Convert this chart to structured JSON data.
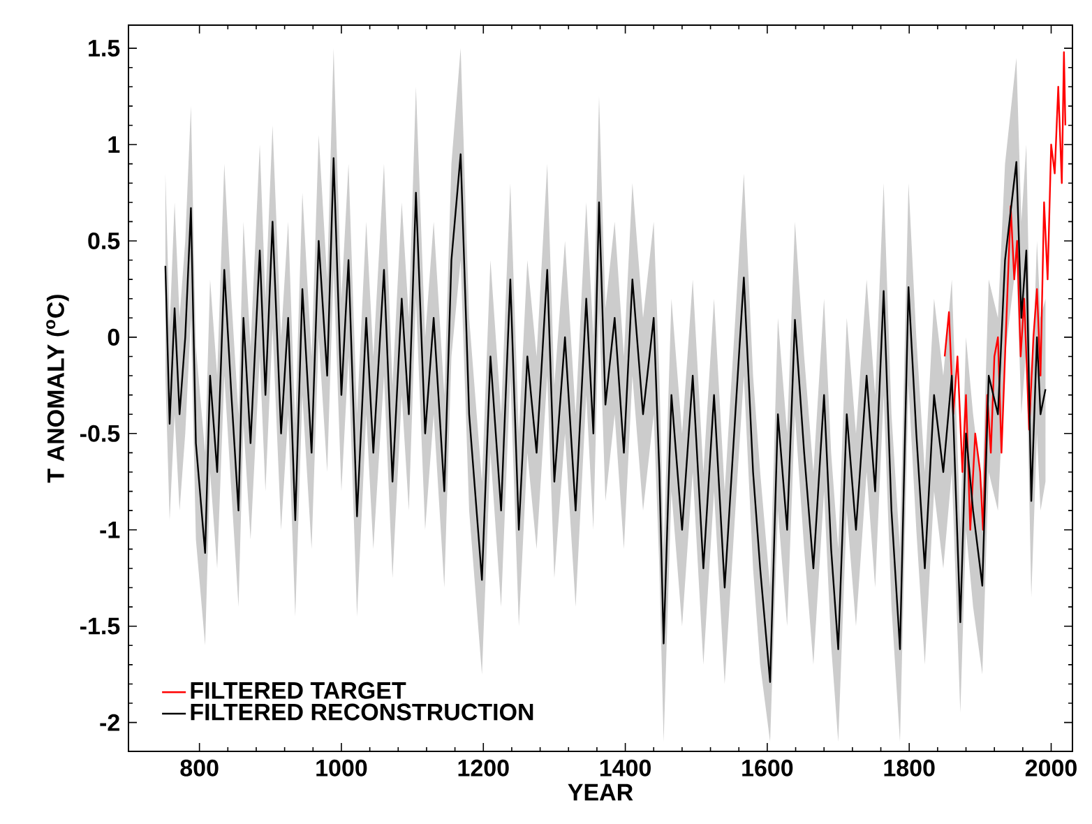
{
  "chart_data": {
    "type": "line",
    "xlabel": "YEAR",
    "ylabel": "T ANOMALY ($^{o}$C)",
    "xlim": [
      700,
      2030
    ],
    "ylim": [
      -2.15,
      1.62
    ],
    "xticks": [
      800,
      1000,
      1200,
      1400,
      1600,
      1800,
      2000
    ],
    "yticks": [
      -2,
      -1.5,
      -1,
      -0.5,
      0,
      0.5,
      1,
      1.5
    ],
    "legend": "bottom left",
    "line_style": "solid",
    "series": [
      {
        "name": "FILTERED TARGET",
        "color": "#ff0000",
        "x": [
          1850,
          1856,
          1862,
          1868,
          1875,
          1880,
          1886,
          1893,
          1900,
          1904,
          1910,
          1915,
          1920,
          1925,
          1930,
          1937,
          1943,
          1948,
          1952,
          1957,
          1962,
          1969,
          1975,
          1980,
          1985,
          1990,
          1995,
          2000,
          2005,
          2010,
          2015,
          2018,
          2020
        ],
        "values": [
          -0.1,
          0.13,
          -0.4,
          -0.1,
          -0.7,
          -0.3,
          -1.0,
          -0.5,
          -0.7,
          -1.0,
          -0.3,
          -0.6,
          -0.1,
          0.0,
          -0.6,
          0.1,
          0.68,
          0.3,
          0.5,
          -0.1,
          0.2,
          -0.48,
          0.0,
          0.25,
          -0.2,
          0.7,
          0.3,
          1.0,
          0.85,
          1.3,
          0.8,
          1.48,
          1.1
        ]
      },
      {
        "name": "FILTERED RECONSTRUCTION",
        "color": "#000000",
        "x": [
          752,
          758,
          765,
          772,
          780,
          788,
          795,
          808,
          815,
          825,
          835,
          845,
          855,
          862,
          872,
          885,
          893,
          903,
          915,
          925,
          935,
          945,
          958,
          968,
          980,
          989,
          1000,
          1010,
          1022,
          1035,
          1045,
          1060,
          1072,
          1085,
          1095,
          1105,
          1118,
          1130,
          1145,
          1155,
          1168,
          1180,
          1198,
          1210,
          1225,
          1238,
          1250,
          1262,
          1275,
          1290,
          1300,
          1315,
          1330,
          1345,
          1355,
          1363,
          1372,
          1385,
          1398,
          1410,
          1425,
          1440,
          1448,
          1454,
          1465,
          1480,
          1495,
          1510,
          1525,
          1540,
          1555,
          1567,
          1580,
          1590,
          1604,
          1615,
          1628,
          1639,
          1652,
          1665,
          1680,
          1690,
          1700,
          1712,
          1725,
          1740,
          1752,
          1764,
          1775,
          1787,
          1799,
          1810,
          1822,
          1835,
          1848,
          1860,
          1872,
          1880,
          1890,
          1903,
          1912,
          1925,
          1935,
          1951,
          1958,
          1965,
          1972,
          1980,
          1985,
          1992
        ],
        "values": [
          0.37,
          -0.45,
          0.15,
          -0.4,
          0.0,
          0.67,
          -0.55,
          -1.12,
          -0.2,
          -0.7,
          0.35,
          -0.3,
          -0.9,
          0.1,
          -0.55,
          0.45,
          -0.3,
          0.6,
          -0.5,
          0.1,
          -0.95,
          0.25,
          -0.6,
          0.5,
          -0.2,
          0.93,
          -0.3,
          0.4,
          -0.93,
          0.1,
          -0.6,
          0.35,
          -0.75,
          0.2,
          -0.4,
          0.75,
          -0.5,
          0.1,
          -0.8,
          0.4,
          0.95,
          -0.4,
          -1.26,
          -0.1,
          -0.9,
          0.3,
          -1.0,
          -0.1,
          -0.6,
          0.35,
          -0.75,
          0.0,
          -0.9,
          0.2,
          -0.5,
          0.7,
          -0.35,
          0.1,
          -0.6,
          0.3,
          -0.4,
          0.1,
          -0.7,
          -1.59,
          -0.3,
          -1.0,
          -0.2,
          -1.2,
          -0.3,
          -1.3,
          -0.4,
          0.31,
          -0.7,
          -1.2,
          -1.79,
          -0.4,
          -1.0,
          0.09,
          -0.6,
          -1.2,
          -0.3,
          -1.1,
          -1.62,
          -0.4,
          -1.0,
          -0.2,
          -0.8,
          0.24,
          -0.9,
          -1.62,
          0.26,
          -0.5,
          -1.2,
          -0.3,
          -0.7,
          -0.2,
          -1.48,
          -0.5,
          -0.9,
          -1.29,
          -0.2,
          -0.4,
          0.4,
          0.91,
          0.1,
          0.45,
          -0.85,
          0.0,
          -0.4,
          -0.27
        ],
        "lower": [
          -0.2,
          -0.95,
          -0.4,
          -0.9,
          -0.5,
          0.1,
          -1.05,
          -1.6,
          -0.7,
          -1.2,
          -0.2,
          -0.8,
          -1.4,
          -0.45,
          -1.05,
          -0.1,
          -0.8,
          0.05,
          -1.0,
          -0.4,
          -1.45,
          -0.3,
          -1.1,
          0.0,
          -0.7,
          0.35,
          -0.8,
          -0.1,
          -1.45,
          -0.4,
          -1.1,
          -0.2,
          -1.25,
          -0.3,
          -0.9,
          0.2,
          -1.0,
          -0.4,
          -1.3,
          -0.1,
          0.4,
          -0.9,
          -1.75,
          -0.6,
          -1.4,
          -0.2,
          -1.5,
          -0.6,
          -1.1,
          -0.2,
          -1.25,
          -0.5,
          -1.4,
          -0.3,
          -1.0,
          0.15,
          -0.85,
          -0.4,
          -1.1,
          -0.2,
          -0.9,
          -0.4,
          -1.2,
          -2.1,
          -0.8,
          -1.5,
          -0.7,
          -1.7,
          -0.8,
          -1.8,
          -0.9,
          -0.2,
          -1.2,
          -1.7,
          -2.1,
          -0.9,
          -1.5,
          -0.4,
          -1.1,
          -1.7,
          -0.8,
          -1.6,
          -2.1,
          -0.9,
          -1.5,
          -0.7,
          -1.3,
          -0.3,
          -1.4,
          -2.1,
          -0.25,
          -1.0,
          -1.7,
          -0.8,
          -1.2,
          -0.7,
          -1.95,
          -1.0,
          -1.4,
          -1.75,
          -0.7,
          -0.9,
          -0.1,
          0.4,
          -0.4,
          -0.05,
          -1.35,
          -0.5,
          -0.9,
          -0.75
        ],
        "upper": [
          0.85,
          0.05,
          0.7,
          0.1,
          0.5,
          1.2,
          -0.05,
          -0.6,
          0.3,
          -0.2,
          0.9,
          0.2,
          -0.4,
          0.6,
          -0.05,
          1.0,
          0.2,
          1.1,
          0.0,
          0.6,
          -0.45,
          0.75,
          -0.1,
          1.05,
          0.3,
          1.5,
          0.2,
          0.9,
          -0.4,
          0.6,
          -0.1,
          0.9,
          -0.25,
          0.7,
          0.1,
          1.3,
          0.0,
          0.6,
          -0.3,
          0.9,
          1.5,
          0.1,
          -0.75,
          0.4,
          -0.4,
          0.8,
          -0.5,
          0.4,
          -0.1,
          0.9,
          -0.25,
          0.5,
          -0.4,
          0.7,
          0.0,
          1.25,
          0.15,
          0.6,
          -0.1,
          0.8,
          0.1,
          0.6,
          -0.2,
          -1.1,
          0.2,
          -0.5,
          0.3,
          -0.7,
          0.2,
          -0.8,
          0.1,
          0.85,
          -0.2,
          -0.7,
          -1.3,
          0.1,
          -0.5,
          0.6,
          -0.1,
          -0.7,
          0.2,
          -0.6,
          -1.1,
          0.1,
          -0.5,
          0.3,
          -0.3,
          0.8,
          -0.4,
          -1.1,
          0.8,
          0.0,
          -0.7,
          0.2,
          -0.2,
          0.3,
          -1.0,
          0.0,
          -0.4,
          -0.8,
          0.3,
          0.1,
          0.9,
          1.45,
          0.6,
          1.0,
          -0.35,
          0.5,
          0.1,
          0.2
        ]
      }
    ]
  }
}
